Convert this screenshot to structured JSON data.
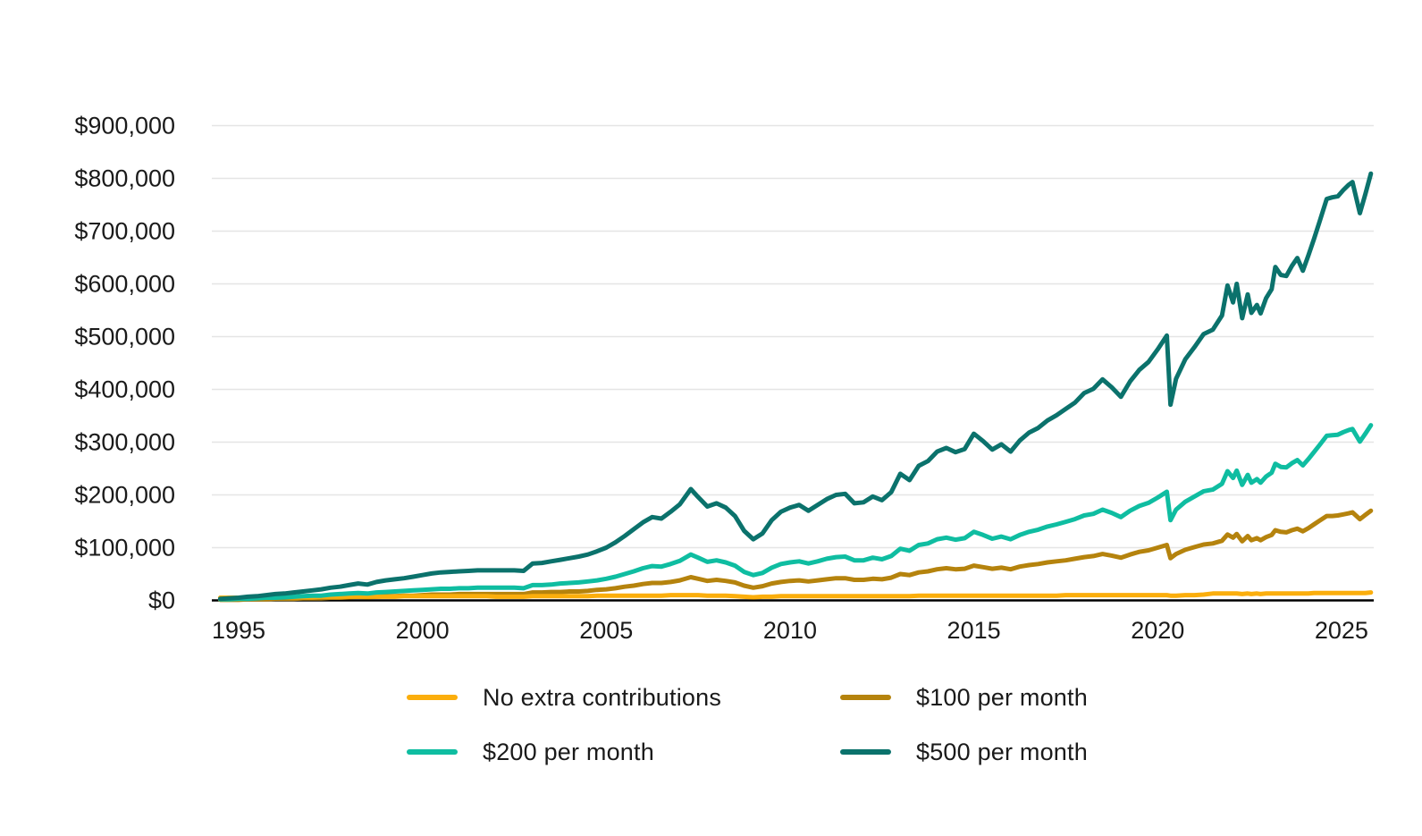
{
  "chart_data": {
    "type": "line",
    "title": "",
    "subtitle": "",
    "grid": "horizontal",
    "legend_position": "bottom",
    "colors": {
      "grid_line": "#E5E5E5",
      "baseline_axis": "#000000",
      "tick_text": "#1A1A1A",
      "background": "#FFFFFF"
    },
    "x_axis": {
      "label": "",
      "ticks": [
        1995,
        2000,
        2005,
        2010,
        2015,
        2020,
        2025
      ],
      "range": [
        1994.4,
        2026.1
      ]
    },
    "y_axis": {
      "label": "",
      "tick_labels": [
        "$0",
        "$100,000",
        "$200,000",
        "$300,000",
        "$400,000",
        "$500,000",
        "$600,000",
        "$700,000",
        "$800,000",
        "$900,000"
      ],
      "tick_values": [
        0,
        100000,
        200000,
        300000,
        400000,
        500000,
        600000,
        700000,
        800000,
        900000
      ],
      "range": [
        0,
        900000
      ],
      "unit": "dollars"
    },
    "values_unit_note": "series values are in thousands of dollars, estimated from plot",
    "x": [
      1994.5,
      1994.75,
      1995,
      1995.25,
      1995.5,
      1995.75,
      1996,
      1996.25,
      1996.5,
      1996.75,
      1997,
      1997.25,
      1997.5,
      1997.75,
      1998,
      1998.25,
      1998.5,
      1998.75,
      1999,
      1999.25,
      1999.5,
      1999.75,
      2000,
      2000.25,
      2000.5,
      2000.75,
      2001,
      2001.25,
      2001.5,
      2001.75,
      2002,
      2002.25,
      2002.5,
      2002.75,
      2003,
      2003.25,
      2003.5,
      2003.75,
      2004,
      2004.25,
      2004.5,
      2004.75,
      2005,
      2005.25,
      2005.5,
      2005.75,
      2006,
      2006.25,
      2006.5,
      2006.75,
      2007,
      2007.3,
      2007.5,
      2007.75,
      2008,
      2008.25,
      2008.5,
      2008.75,
      2009,
      2009.25,
      2009.5,
      2009.75,
      2010,
      2010.25,
      2010.5,
      2010.75,
      2011,
      2011.25,
      2011.5,
      2011.75,
      2012,
      2012.25,
      2012.5,
      2012.75,
      2013,
      2013.25,
      2013.5,
      2013.75,
      2014,
      2014.25,
      2014.5,
      2014.75,
      2015,
      2015.25,
      2015.5,
      2015.75,
      2016,
      2016.25,
      2016.5,
      2016.75,
      2017,
      2017.25,
      2017.5,
      2017.75,
      2018,
      2018.25,
      2018.5,
      2018.75,
      2019,
      2019.25,
      2019.5,
      2019.75,
      2020,
      2020.25,
      2020.35,
      2020.5,
      2020.75,
      2021,
      2021.25,
      2021.5,
      2021.75,
      2021.9,
      2022.05,
      2022.15,
      2022.3,
      2022.45,
      2022.55,
      2022.7,
      2022.8,
      2022.95,
      2023.1,
      2023.2,
      2023.35,
      2023.5,
      2023.65,
      2023.8,
      2023.95,
      2024.1,
      2024.25,
      2024.4,
      2024.6,
      2024.75,
      2024.9,
      2025.05,
      2025.2,
      2025.3,
      2025.5,
      2025.65,
      2025.8
    ],
    "series": [
      {
        "name": "No extra contributions",
        "color": "#FBAE0C",
        "values": [
          5,
          5,
          5,
          5,
          6,
          6,
          6,
          6,
          6,
          6,
          6,
          7,
          7,
          7,
          7,
          7,
          7,
          7,
          7,
          7,
          8,
          8,
          8,
          8,
          8,
          8,
          8,
          8,
          8,
          8,
          7,
          7,
          7,
          7,
          8,
          8,
          8,
          8,
          8,
          8,
          8,
          9,
          9,
          9,
          9,
          9,
          9,
          9,
          9,
          10,
          10,
          10,
          10,
          9,
          9,
          9,
          8,
          7,
          6,
          7,
          7,
          8,
          8,
          8,
          8,
          8,
          8,
          8,
          8,
          8,
          8,
          8,
          8,
          8,
          8,
          8,
          9,
          9,
          9,
          9,
          9,
          9,
          9,
          9,
          9,
          9,
          9,
          9,
          9,
          9,
          9,
          9,
          10,
          10,
          10,
          10,
          10,
          10,
          10,
          10,
          10,
          10,
          10,
          10,
          9,
          9,
          10,
          10,
          11,
          13,
          13,
          13,
          13,
          13,
          12,
          13,
          12,
          13,
          12,
          13,
          13,
          13,
          13,
          13,
          13,
          13,
          13,
          13,
          14,
          14,
          14,
          14,
          14,
          14,
          14,
          14,
          14,
          14,
          15
        ]
      },
      {
        "name": "$100 per month",
        "color": "#B5830D",
        "values": [
          1,
          1,
          1,
          2,
          2,
          2,
          3,
          3,
          3,
          4,
          4,
          4,
          5,
          5,
          6,
          7,
          6,
          7,
          8,
          8,
          9,
          9,
          10,
          11,
          11,
          11,
          12,
          12,
          12,
          12,
          12,
          12,
          12,
          12,
          15,
          15,
          16,
          16,
          17,
          17,
          18,
          20,
          21,
          23,
          26,
          28,
          31,
          33,
          33,
          35,
          38,
          44,
          41,
          37,
          39,
          37,
          34,
          28,
          24,
          27,
          32,
          35,
          37,
          38,
          36,
          38,
          40,
          42,
          42,
          39,
          39,
          41,
          40,
          43,
          50,
          48,
          53,
          55,
          59,
          61,
          59,
          60,
          66,
          63,
          60,
          62,
          59,
          64,
          67,
          69,
          72,
          74,
          76,
          79,
          82,
          84,
          88,
          85,
          81,
          87,
          92,
          95,
          100,
          105,
          80,
          88,
          96,
          101,
          106,
          108,
          113,
          125,
          119,
          126,
          112,
          122,
          114,
          118,
          114,
          120,
          124,
          133,
          130,
          129,
          133,
          136,
          131,
          137,
          144,
          151,
          160,
          160,
          161,
          163,
          165,
          167,
          154,
          162,
          170
        ]
      },
      {
        "name": "$200 per month",
        "color": "#0FBDA1",
        "values": [
          2,
          2,
          3,
          3,
          4,
          5,
          5,
          6,
          7,
          8,
          9,
          9,
          11,
          12,
          13,
          14,
          13,
          15,
          16,
          17,
          18,
          19,
          20,
          21,
          22,
          22,
          23,
          23,
          24,
          24,
          24,
          24,
          24,
          23,
          29,
          29,
          30,
          32,
          33,
          34,
          36,
          38,
          41,
          45,
          50,
          55,
          61,
          65,
          64,
          69,
          75,
          87,
          81,
          73,
          76,
          72,
          66,
          54,
          48,
          52,
          62,
          69,
          72,
          74,
          70,
          74,
          79,
          82,
          83,
          76,
          76,
          81,
          78,
          84,
          98,
          94,
          105,
          108,
          116,
          119,
          115,
          118,
          130,
          124,
          117,
          121,
          116,
          124,
          130,
          134,
          140,
          144,
          149,
          154,
          161,
          164,
          172,
          166,
          158,
          170,
          179,
          185,
          195,
          206,
          152,
          172,
          187,
          197,
          207,
          210,
          221,
          245,
          232,
          246,
          219,
          238,
          223,
          230,
          223,
          235,
          242,
          259,
          253,
          252,
          260,
          266,
          256,
          268,
          281,
          294,
          312,
          313,
          314,
          319,
          323,
          325,
          301,
          316,
          332
        ]
      },
      {
        "name": "$500 per month",
        "color": "#0B726C",
        "values": [
          3,
          4,
          5,
          7,
          8,
          10,
          12,
          13,
          15,
          17,
          19,
          21,
          24,
          26,
          29,
          32,
          30,
          35,
          38,
          40,
          42,
          45,
          48,
          51,
          53,
          54,
          55,
          56,
          57,
          57,
          57,
          57,
          57,
          56,
          70,
          71,
          74,
          77,
          80,
          83,
          87,
          93,
          100,
          110,
          122,
          135,
          148,
          158,
          155,
          168,
          182,
          211,
          196,
          178,
          184,
          176,
          160,
          132,
          116,
          127,
          152,
          168,
          176,
          181,
          170,
          181,
          192,
          200,
          202,
          184,
          186,
          197,
          190,
          205,
          240,
          228,
          255,
          264,
          282,
          289,
          281,
          287,
          316,
          302,
          286,
          296,
          282,
          303,
          318,
          327,
          341,
          351,
          363,
          375,
          393,
          401,
          419,
          404,
          386,
          415,
          437,
          452,
          476,
          502,
          371,
          420,
          457,
          480,
          505,
          513,
          540,
          597,
          565,
          600,
          535,
          580,
          545,
          560,
          544,
          573,
          590,
          632,
          617,
          615,
          634,
          649,
          625,
          654,
          685,
          717,
          761,
          764,
          766,
          778,
          788,
          793,
          734,
          770,
          809
        ]
      }
    ]
  },
  "legend": {
    "row1_col1": "No extra contributions",
    "row1_col2": "$100 per month",
    "row2_col1": "$200 per month",
    "row2_col2": "$500 per month"
  }
}
